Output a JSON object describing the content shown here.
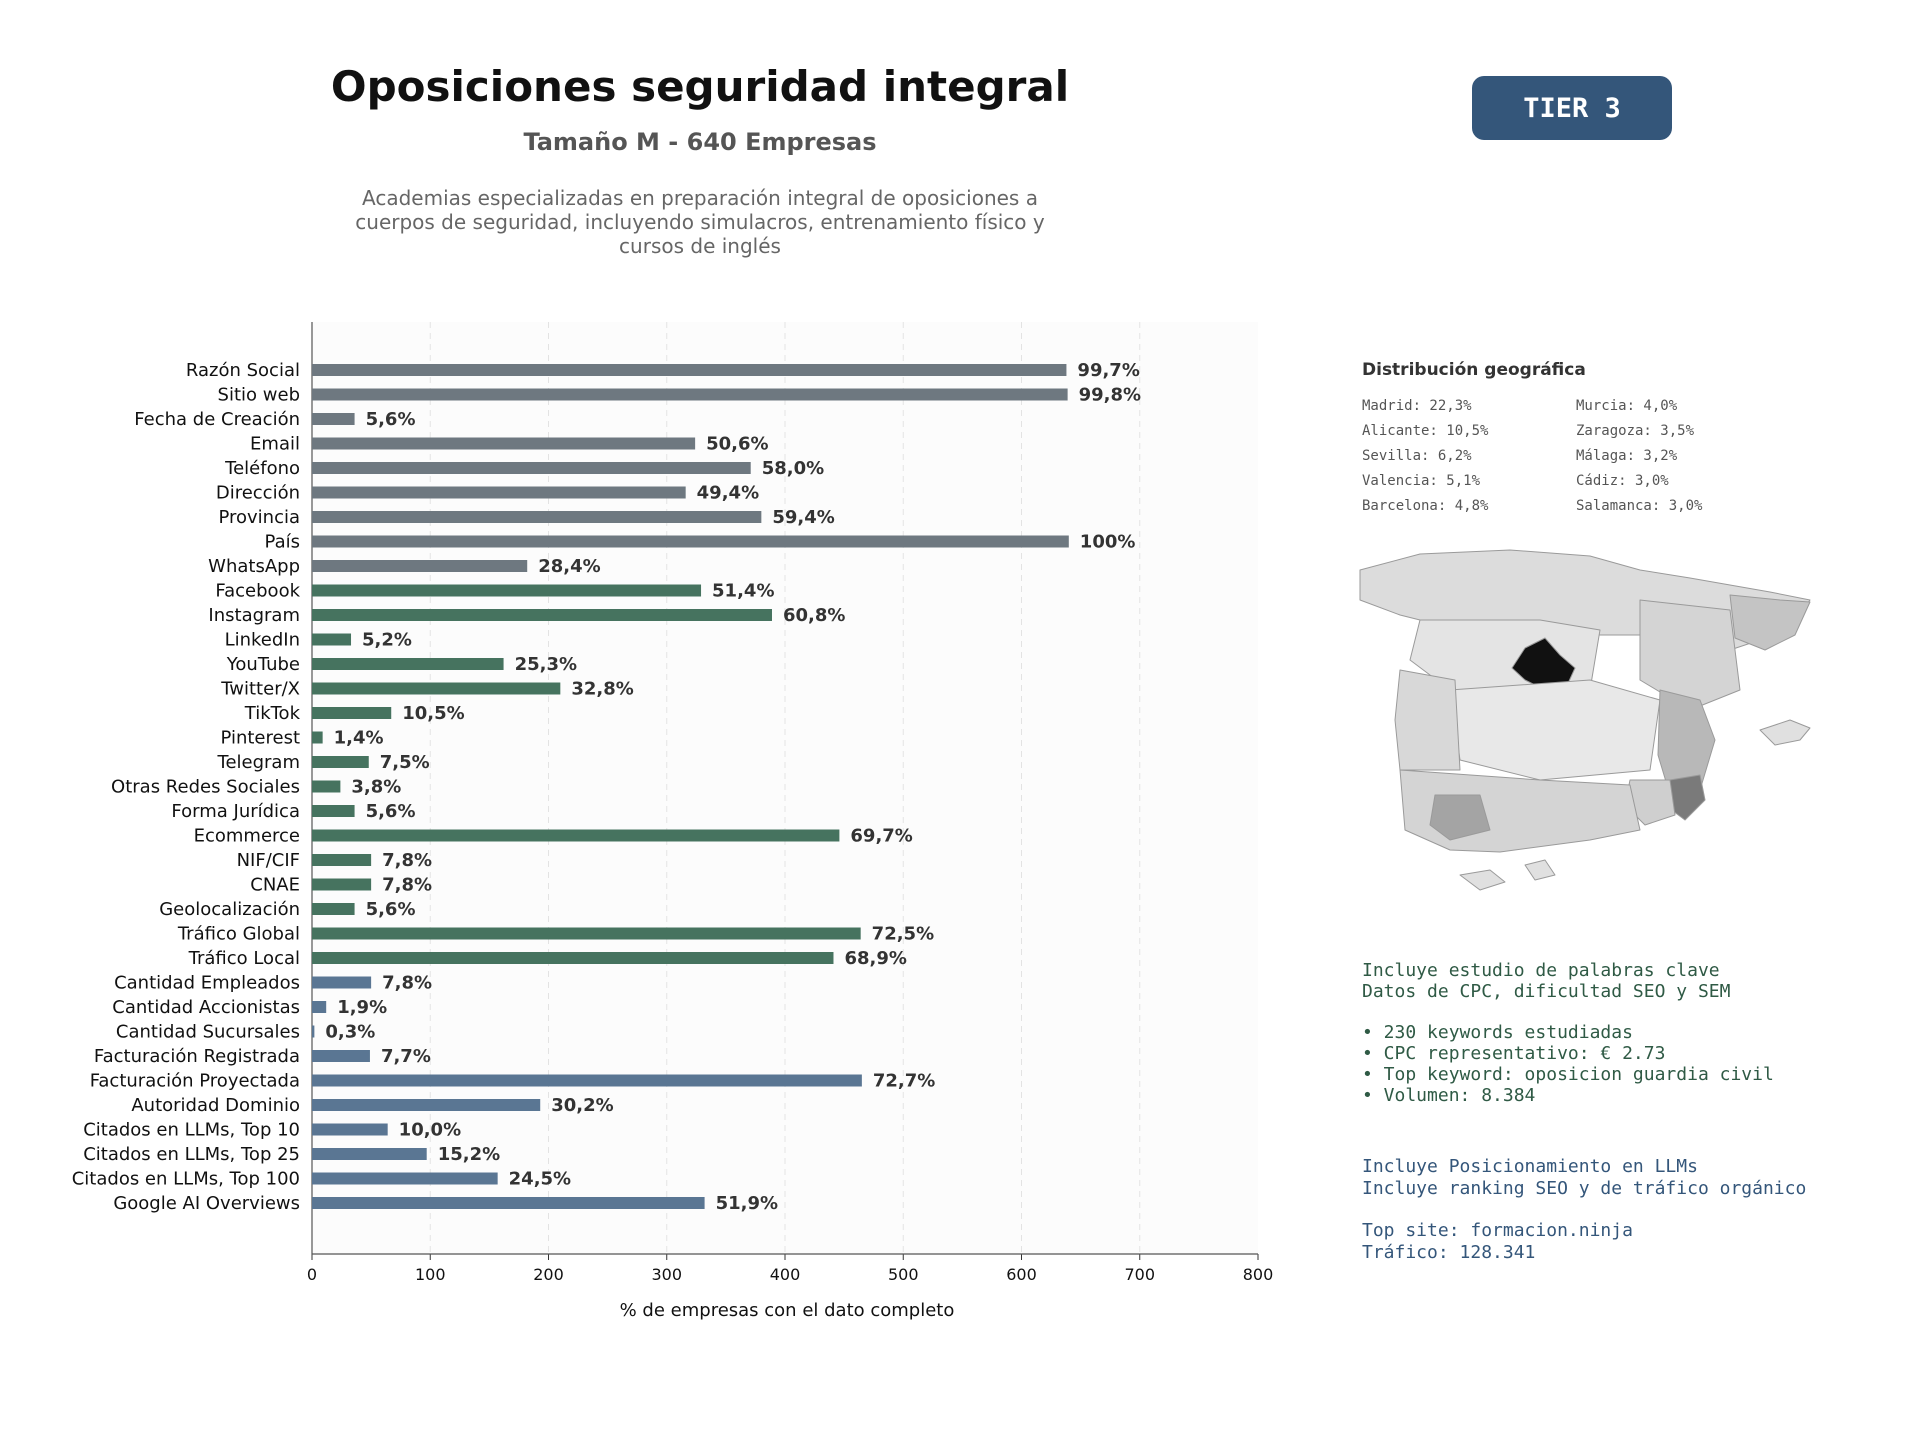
{
  "header": {
    "title": "Oposiciones seguridad integral",
    "subtitle": "Tamaño M - 640 Empresas",
    "description": "Academias especializadas en preparación integral de oposiciones a cuerpos de seguridad, incluyendo simulacros, entrenamiento físico y cursos de inglés",
    "tier": "TIER 3"
  },
  "chart_data": {
    "type": "bar",
    "orientation": "horizontal",
    "xlabel": "% de empresas con el dato completo",
    "xlim": [
      0,
      800
    ],
    "xticks": [
      0,
      100,
      200,
      300,
      400,
      500,
      600,
      700,
      800
    ],
    "grid": "vertical dashed",
    "categories": [
      "Razón Social",
      "Sitio web",
      "Fecha de Creación",
      "Email",
      "Teléfono",
      "Dirección",
      "Provincia",
      "País",
      "WhatsApp",
      "Facebook",
      "Instagram",
      "LinkedIn",
      "YouTube",
      "Twitter/X",
      "TikTok",
      "Pinterest",
      "Telegram",
      "Otras Redes Sociales",
      "Forma Jurídica",
      "Ecommerce",
      "NIF/CIF",
      "CNAE",
      "Geolocalización",
      "Tráfico Global",
      "Tráfico Local",
      "Cantidad Empleados",
      "Cantidad Accionistas",
      "Cantidad Sucursales",
      "Facturación Registrada",
      "Facturación Proyectada",
      "Autoridad Dominio",
      "Citados en LLMs, Top 10",
      "Citados en LLMs, Top 25",
      "Citados en LLMs, Top 100",
      "Google AI Overviews"
    ],
    "values": [
      638,
      639,
      36,
      324,
      371,
      316,
      380,
      640,
      182,
      329,
      389,
      33,
      162,
      210,
      67,
      9,
      48,
      24,
      36,
      446,
      50,
      50,
      36,
      464,
      441,
      50,
      12,
      2,
      49,
      465,
      193,
      64,
      97,
      157,
      332
    ],
    "labels": [
      "99,7%",
      "99,8%",
      "5,6%",
      "50,6%",
      "58,0%",
      "49,4%",
      "59,4%",
      "100%",
      "28,4%",
      "51,4%",
      "60,8%",
      "5,2%",
      "25,3%",
      "32,8%",
      "10,5%",
      "1,4%",
      "7,5%",
      "3,8%",
      "5,6%",
      "69,7%",
      "7,8%",
      "7,8%",
      "5,6%",
      "72,5%",
      "68,9%",
      "7,8%",
      "1,9%",
      "0,3%",
      "7,7%",
      "72,7%",
      "30,2%",
      "10,0%",
      "15,2%",
      "24,5%",
      "51,9%"
    ],
    "groups": [
      {
        "start": 0,
        "end": 8,
        "color": "#6e7880"
      },
      {
        "start": 9,
        "end": 24,
        "color": "#46735f"
      },
      {
        "start": 25,
        "end": 34,
        "color": "#5a7693"
      }
    ]
  },
  "geo": {
    "title": "Distribución geográfica",
    "items": [
      "Madrid: 22,3%",
      "Murcia: 4,0%",
      "Alicante: 10,5%",
      "Zaragoza: 3,5%",
      "Sevilla: 6,2%",
      "Málaga: 3,2%",
      "Valencia: 5,1%",
      "Cádiz: 3,0%",
      "Barcelona: 4,8%",
      "Salamanca: 3,0%"
    ]
  },
  "seo": {
    "line1": "Incluye estudio de palabras clave",
    "line2": "Datos de CPC, dificultad SEO y SEM",
    "bullet1": "• 230 keywords estudiadas",
    "bullet2": "• CPC representativo: € 2.73",
    "bullet3": "• Top keyword: oposicion guardia civil",
    "bullet4": "• Volumen: 8.384"
  },
  "llm": {
    "line1": "Incluye Posicionamiento en LLMs",
    "line2": "Incluye ranking SEO y de tráfico orgánico",
    "top_site": "Top site: formacion.ninja",
    "traffic": "Tráfico: 128.341"
  },
  "colors": {
    "map_dark": "#111111",
    "map_mid": "#7a7a7a",
    "map_light": "#d0d0d0"
  }
}
